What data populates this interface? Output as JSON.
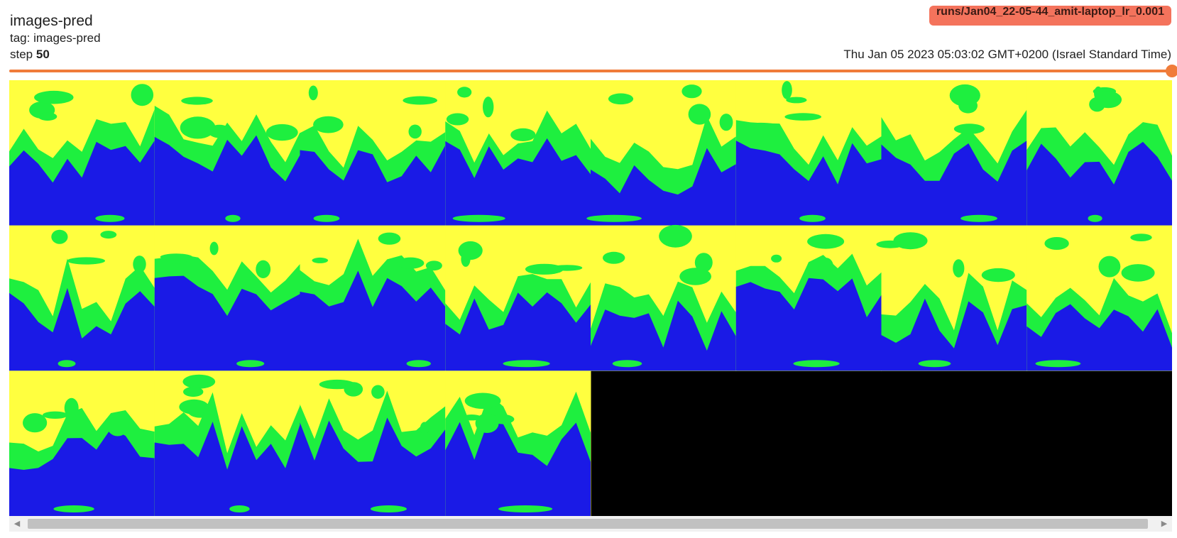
{
  "card": {
    "title": "images-pred",
    "tag_text": "tag: images-pred",
    "step_label": "step",
    "step_value": "50",
    "run_name": "runs/Jan04_22-05-44_amit-laptop_lr_0.001",
    "timestamp": "Thu Jan 05 2023 05:03:02 GMT+0200 (Israel Standard Time)"
  },
  "slider": {
    "value_fraction": 1.0,
    "color": "#f07c3a"
  },
  "image_grid": {
    "rows": 3,
    "cols": 8,
    "filled_tiles": 20,
    "colors": {
      "sky": "#ffff3f",
      "land": "#1eef3f",
      "water": "#1a1ae6",
      "empty": "#000000"
    }
  },
  "scrollbar": {
    "left_arrow_icon": "scroll-left-icon",
    "right_arrow_icon": "scroll-right-icon",
    "left_glyph": "◀",
    "right_glyph": "▶"
  }
}
